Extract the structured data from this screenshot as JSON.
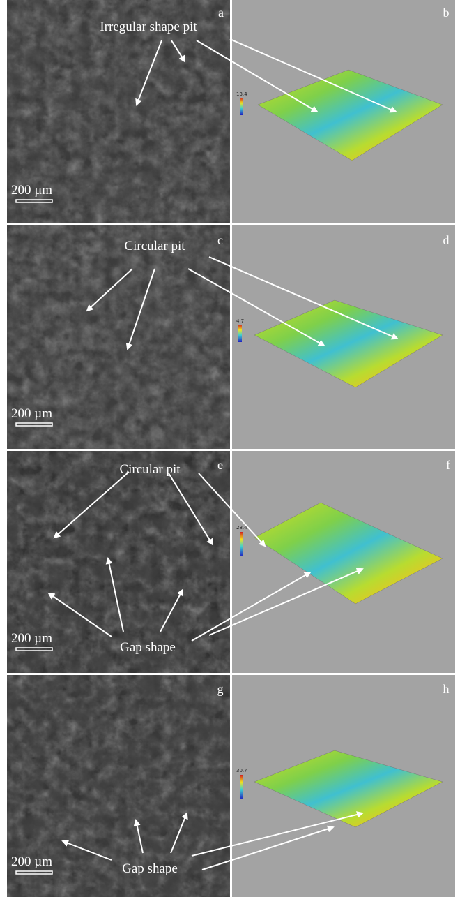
{
  "panels": [
    {
      "label": "a",
      "annotation": "Irregular shape pit",
      "scale_bar": "200 µm"
    },
    {
      "label": "b",
      "z_max": "13.4"
    },
    {
      "label": "c",
      "annotation": "Circular pit",
      "scale_bar": "200 µm"
    },
    {
      "label": "d",
      "z_max": "4.7"
    },
    {
      "label": "e",
      "annotation": "Circular pit",
      "annotation2": "Gap shape",
      "scale_bar": "200 µm"
    },
    {
      "label": "f",
      "z_max": "28.4"
    },
    {
      "label": "g",
      "annotation": "Gap shape",
      "scale_bar": "200 µm"
    },
    {
      "label": "h",
      "z_max": "30.7"
    }
  ]
}
